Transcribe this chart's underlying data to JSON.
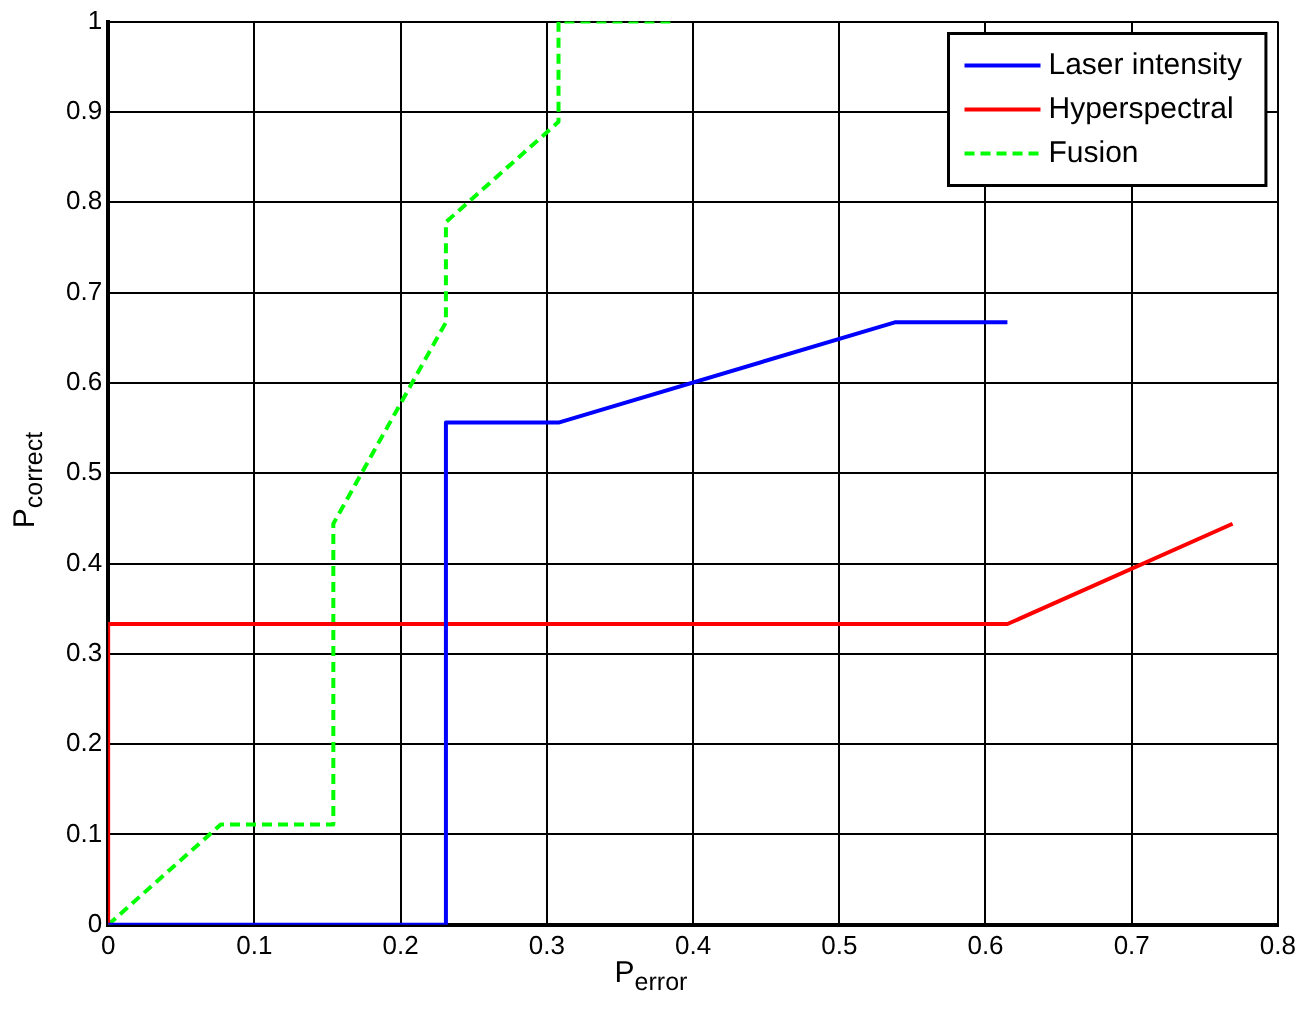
{
  "chart_data": {
    "type": "line",
    "xlabel": "P$_{error}$",
    "ylabel": "P$_{correct}$",
    "xlim": [
      0,
      0.8
    ],
    "xticks": [
      0,
      0.1,
      0.2,
      0.3,
      0.4,
      0.5,
      0.6,
      0.7,
      0.8
    ],
    "ylim": [
      0,
      1
    ],
    "yticks": [
      0,
      0.1,
      0.2,
      0.3,
      0.4,
      0.5,
      0.6,
      0.7,
      0.8,
      0.9,
      1
    ],
    "grid": true,
    "legend": "top right",
    "marker": "none",
    "series": [
      {
        "name": "Laser intensity",
        "color": "#0000ff",
        "line_style": "solid",
        "x": [
          0,
          0.231,
          0.231,
          0.308,
          0.538,
          0.615
        ],
        "values": [
          0,
          0,
          0.556,
          0.556,
          0.667,
          0.667
        ]
      },
      {
        "name": "Hyperspectral",
        "color": "#ff0000",
        "line_style": "solid",
        "x": [
          0,
          0,
          0.615,
          0.769
        ],
        "values": [
          0,
          0.333,
          0.333,
          0.444
        ]
      },
      {
        "name": "Fusion",
        "color": "#00ff00",
        "line_style": "dashed",
        "x": [
          0,
          0.077,
          0.154,
          0.154,
          0.231,
          0.231,
          0.308,
          0.308,
          0.385
        ],
        "values": [
          0,
          0.111,
          0.111,
          0.444,
          0.667,
          0.778,
          0.889,
          1,
          1
        ]
      }
    ]
  }
}
